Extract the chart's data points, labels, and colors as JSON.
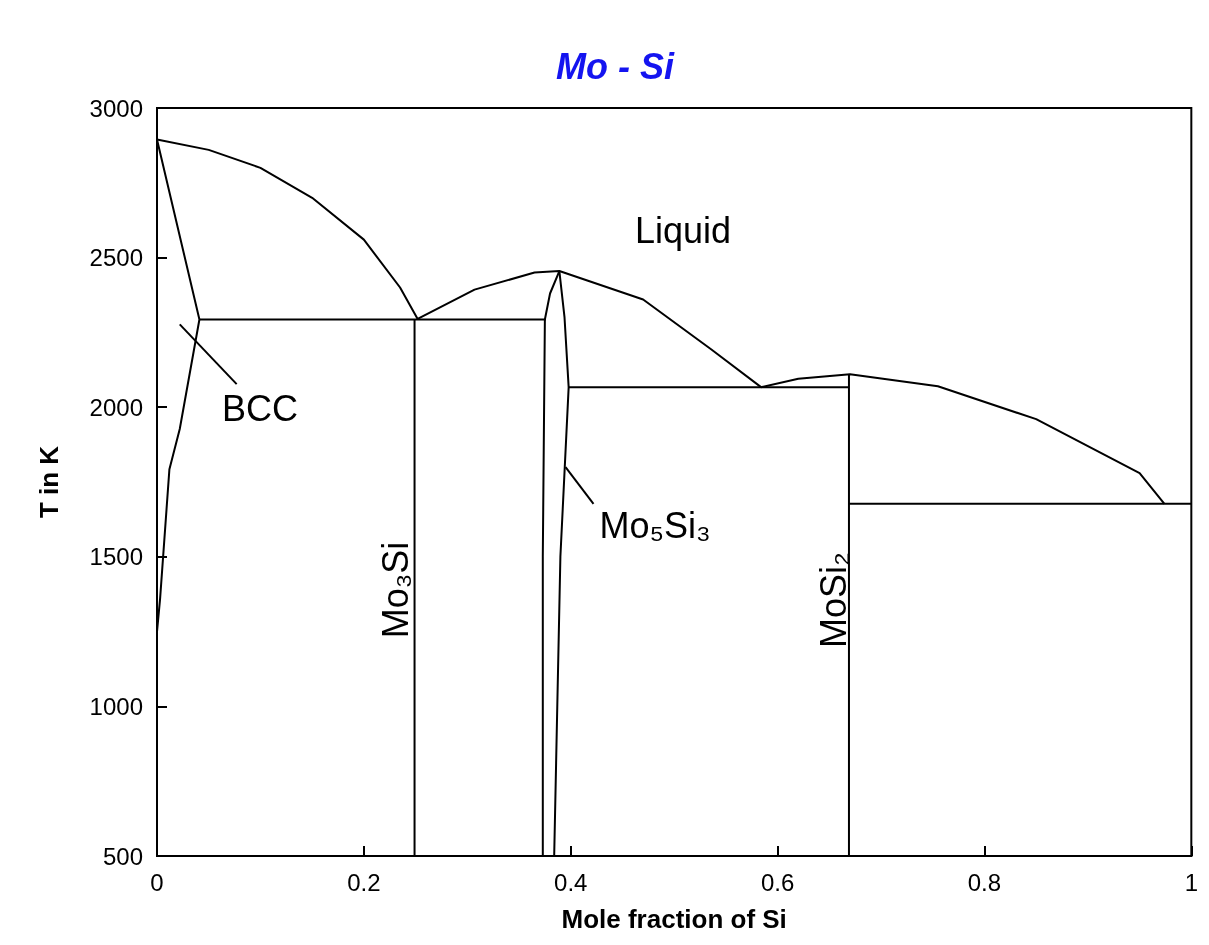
{
  "chart_data": {
    "type": "line",
    "title": "Mo - Si",
    "xlabel": "Mole fraction of Si",
    "ylabel": "T in K",
    "xlim": [
      0,
      1
    ],
    "xticks": [
      0,
      0.2,
      0.4,
      0.6,
      0.8,
      1
    ],
    "ylim": [
      500,
      3000
    ],
    "yticks": [
      500,
      1000,
      1500,
      2000,
      2500,
      3000
    ],
    "grid": false,
    "marker": "none",
    "line_style": "solid",
    "series": [
      {
        "color": "#000000",
        "x": [
          0,
          0.05,
          0.1,
          0.15,
          0.2,
          0.235,
          0.252
        ],
        "values": [
          2895,
          2860,
          2800,
          2700,
          2560,
          2400,
          2295
        ]
      },
      {
        "color": "#000000",
        "x": [
          0.252,
          0.307,
          0.365,
          0.389,
          0.47,
          0.536,
          0.584
        ],
        "values": [
          2295,
          2393,
          2450,
          2455,
          2360,
          2193,
          2067
        ]
      },
      {
        "color": "#000000",
        "x": [
          0.584,
          0.62,
          0.67,
          0.755,
          0.85,
          0.95,
          0.974
        ],
        "values": [
          2067,
          2095,
          2110,
          2070,
          1960,
          1780,
          1677
        ]
      },
      {
        "color": "#000000",
        "x": [
          0,
          0.041,
          0.022,
          0.012,
          0.003,
          0
        ],
        "values": [
          2895,
          2293,
          1927,
          1793,
          1360,
          1250
        ]
      },
      {
        "color": "#000000",
        "x": [
          0.041,
          0.376
        ],
        "values": [
          2293,
          2293
        ]
      },
      {
        "color": "#000000",
        "x": [
          0.249,
          0.249
        ],
        "values": [
          2293,
          500
        ]
      },
      {
        "color": "#000000",
        "x": [
          0.389,
          0.38,
          0.375,
          0.373,
          0.373
        ],
        "values": [
          2455,
          2380,
          2293,
          1500,
          500
        ]
      },
      {
        "color": "#000000",
        "x": [
          0.389,
          0.394,
          0.398,
          0.39,
          0.384
        ],
        "values": [
          2455,
          2300,
          2067,
          1500,
          500
        ]
      },
      {
        "color": "#000000",
        "x": [
          0.398,
          0.669
        ],
        "values": [
          2067,
          2067
        ]
      },
      {
        "color": "#000000",
        "x": [
          0.669,
          0.669
        ],
        "values": [
          2110,
          500
        ]
      },
      {
        "color": "#000000",
        "x": [
          0.669,
          1
        ],
        "values": [
          1677,
          1677
        ]
      },
      {
        "color": "#000000",
        "x": [
          0.022,
          0.077
        ],
        "values": [
          2277,
          2077
        ]
      },
      {
        "color": "#000000",
        "x": [
          0.395,
          0.422
        ],
        "values": [
          1800,
          1677
        ]
      }
    ],
    "annotations": [
      "Liquid",
      "BCC",
      "Mo₃Si",
      "Mo₅Si₃",
      "MoSi₂"
    ]
  }
}
